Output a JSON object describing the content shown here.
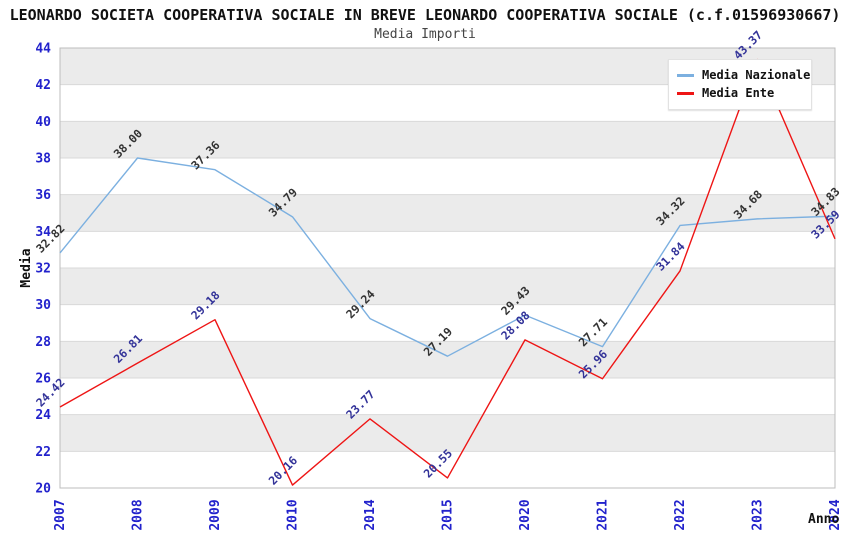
{
  "chart_data": {
    "type": "line",
    "title": "LEONARDO SOCIETA COOPERATIVA SOCIALE IN BREVE LEONARDO COOPERATIVA SOCIALE (c.f.01596930667)",
    "subtitle": "Media Importi",
    "xlabel": "Anno",
    "ylabel": "Media",
    "ylim": [
      20,
      44
    ],
    "ytick_step": 2,
    "grid": "horizontal-bands",
    "legend_position": "top-right",
    "band_colors": [
      "#ebebeb",
      "#ffffff"
    ],
    "plot_border_color": "#bdbdbd",
    "gridline_color": "#d9d9d9",
    "axis_tick_color": "#2222cc",
    "categories": [
      "2007",
      "2008",
      "2009",
      "2010",
      "2014",
      "2015",
      "2020",
      "2021",
      "2022",
      "2023",
      "2024"
    ],
    "series": [
      {
        "name": "Media Nazionale",
        "color": "#7cb0e0",
        "label_color": "#333333",
        "values": [
          32.82,
          38.0,
          37.36,
          34.79,
          29.24,
          27.19,
          29.43,
          27.71,
          34.32,
          34.68,
          34.83
        ]
      },
      {
        "name": "Media Ente",
        "color": "#ee1515",
        "label_color": "#333399",
        "values": [
          24.42,
          26.81,
          29.18,
          20.16,
          23.77,
          20.55,
          28.08,
          25.96,
          31.84,
          43.37,
          33.59
        ]
      }
    ]
  }
}
